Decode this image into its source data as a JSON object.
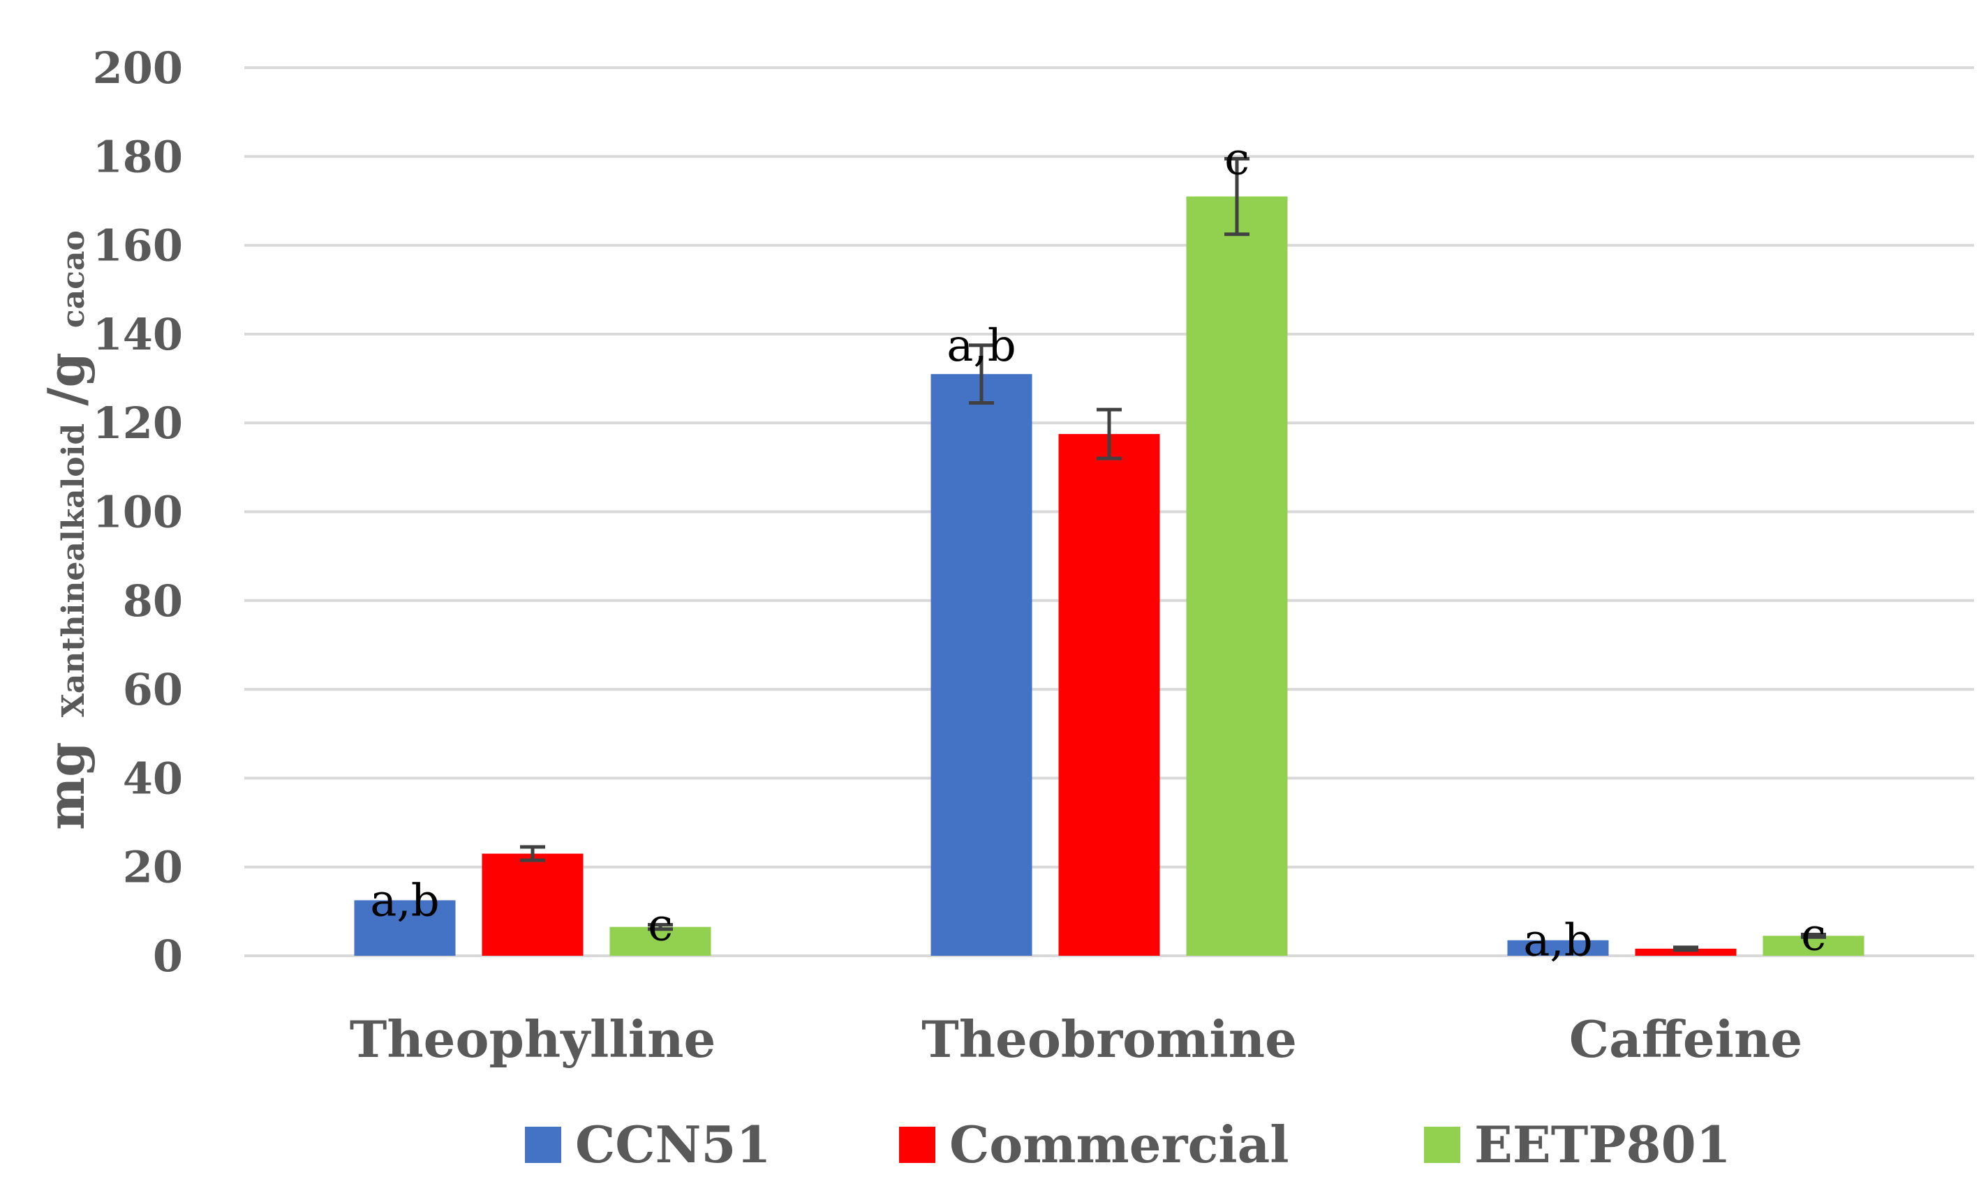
{
  "chart_data": {
    "type": "bar",
    "title": "",
    "xlabel": "",
    "ylabel": {
      "prefix": "mg",
      "sub1": "Xanthinealkaloid",
      "mid": "/g",
      "sub2": "cacao"
    },
    "ylim": [
      0,
      200
    ],
    "yticks": [
      0,
      20,
      40,
      60,
      80,
      100,
      120,
      140,
      160,
      180,
      200
    ],
    "grid": true,
    "legend_position": "bottom",
    "categories": [
      "Theophylline",
      "Theobromine",
      "Caffeine"
    ],
    "series": [
      {
        "name": "CCN51",
        "color": "#4472C4",
        "values": [
          12.5,
          131,
          3.5
        ],
        "errors": [
          0,
          6.5,
          0
        ],
        "labels": [
          "a,b",
          "a,b",
          "a,b"
        ]
      },
      {
        "name": "Commercial",
        "color": "#FF0000",
        "values": [
          23,
          117.5,
          1.6
        ],
        "errors": [
          1.5,
          5.5,
          0.3
        ],
        "labels": [
          "",
          "",
          ""
        ]
      },
      {
        "name": "EETP801",
        "color": "#92D050",
        "values": [
          6.5,
          171,
          4.5
        ],
        "errors": [
          0.5,
          8.5,
          0.3
        ],
        "labels": [
          "c",
          "c",
          "c"
        ]
      }
    ]
  }
}
